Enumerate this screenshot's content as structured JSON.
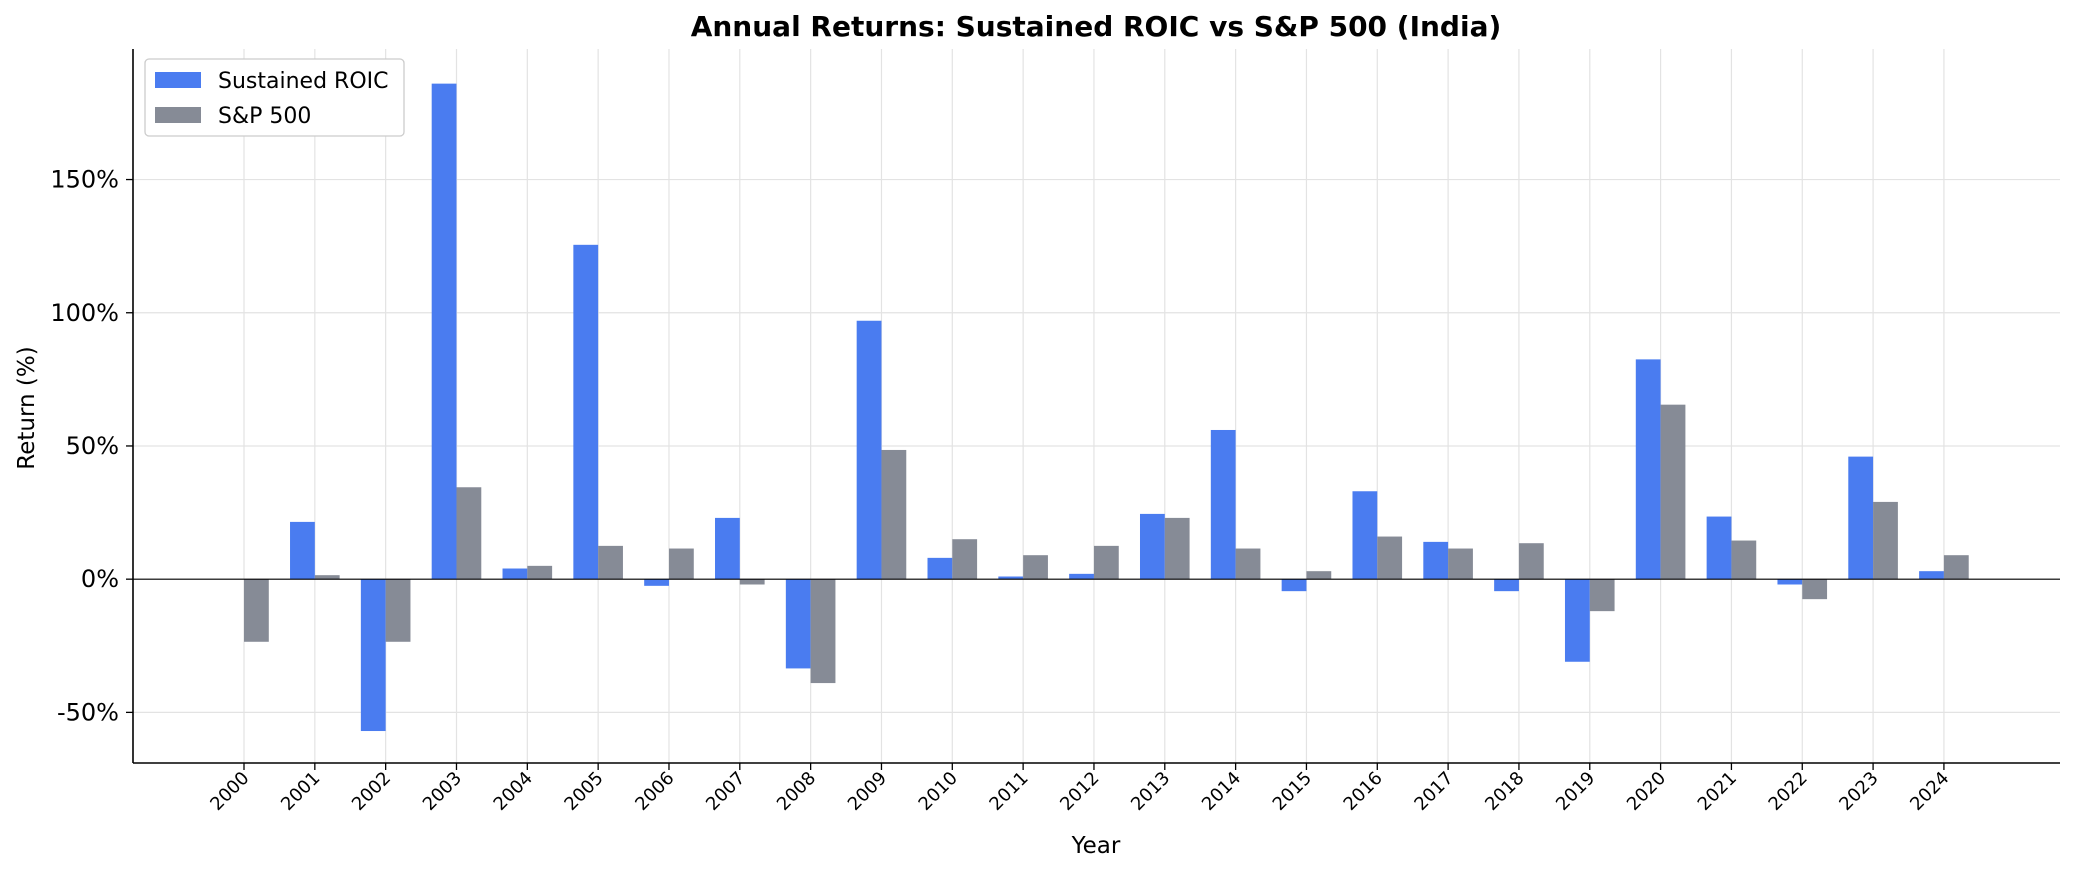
{
  "chart_data": {
    "type": "bar",
    "title": "Annual Returns: Sustained ROIC vs S&P 500 (India)",
    "xlabel": "Year",
    "ylabel": "Return (%)",
    "categories": [
      "2000",
      "2001",
      "2002",
      "2003",
      "2004",
      "2005",
      "2006",
      "2007",
      "2008",
      "2009",
      "2010",
      "2011",
      "2012",
      "2013",
      "2014",
      "2015",
      "2016",
      "2017",
      "2018",
      "2019",
      "2020",
      "2021",
      "2022",
      "2023",
      "2024"
    ],
    "series": [
      {
        "name": "Sustained ROIC",
        "color": "#4a7cf0",
        "values": [
          null,
          21.5,
          -57,
          186,
          4,
          125.5,
          -2.5,
          23,
          -33.5,
          97,
          8,
          1,
          2,
          24.5,
          56,
          -4.5,
          33,
          14,
          -4.5,
          -31,
          82.5,
          23.5,
          -2,
          46,
          3
        ]
      },
      {
        "name": "S&P 500",
        "color": "#868b96",
        "values": [
          -23.5,
          1.5,
          -23.5,
          34.5,
          5,
          12.5,
          11.5,
          -2,
          -39,
          48.5,
          15,
          9,
          12.5,
          23,
          11.5,
          3,
          16,
          11.5,
          13.5,
          -12,
          65.5,
          14.5,
          -7.5,
          29,
          9
        ]
      }
    ],
    "yticks": [
      -50,
      0,
      50,
      100,
      150
    ],
    "ytick_labels": [
      "-50%",
      "0%",
      "50%",
      "100%",
      "150%"
    ],
    "ylim": [
      -69,
      199
    ],
    "grid": true,
    "legend_position": "top-left",
    "zero_line": true
  }
}
